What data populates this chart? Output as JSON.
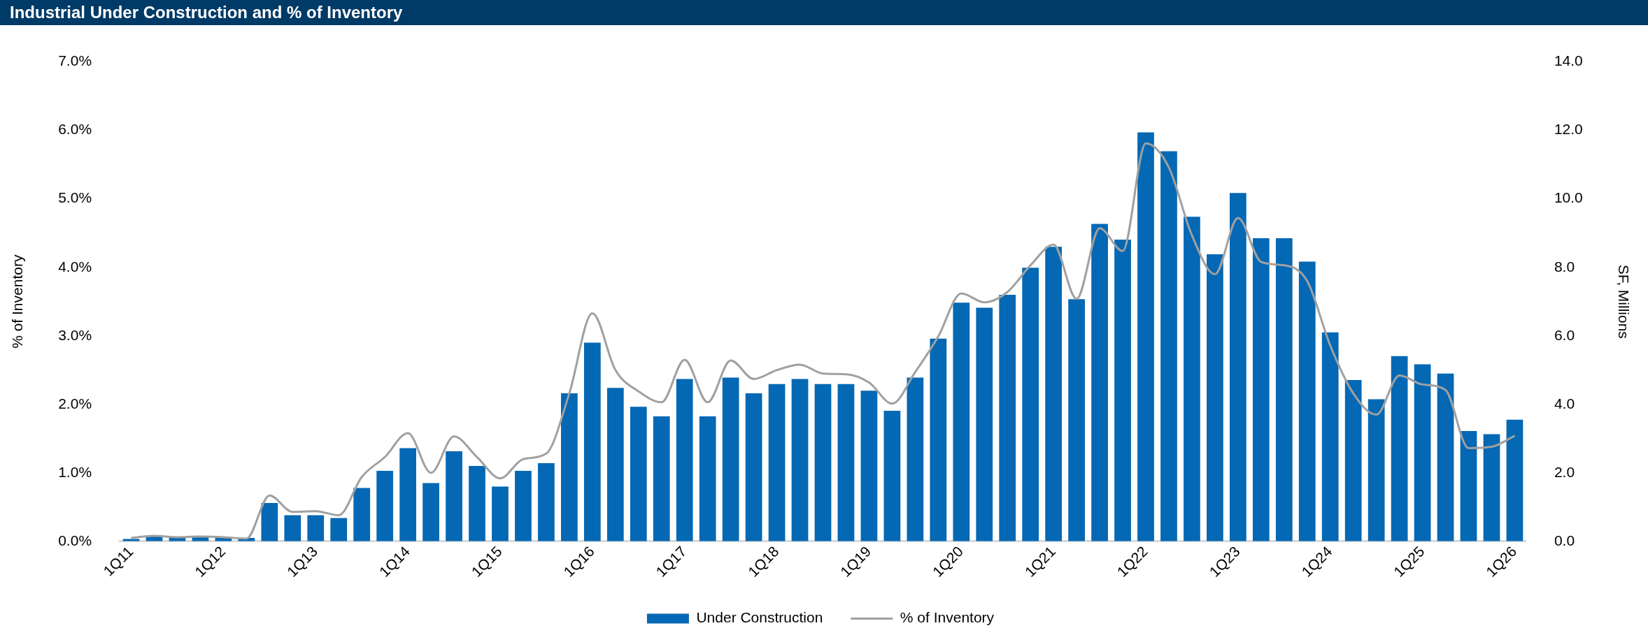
{
  "chart_data": {
    "type": "bar",
    "title": "Industrial Under Construction and % of Inventory",
    "ylabel": "% of Inventory",
    "y2label": "SF, Millions",
    "categories": [
      "1Q11",
      null,
      null,
      null,
      "1Q12",
      null,
      null,
      null,
      "1Q13",
      null,
      null,
      null,
      "1Q14",
      null,
      null,
      null,
      "1Q15",
      null,
      null,
      null,
      "1Q16",
      null,
      null,
      null,
      "1Q17",
      null,
      null,
      null,
      "1Q18",
      null,
      null,
      null,
      "1Q19",
      null,
      null,
      null,
      "1Q20",
      null,
      null,
      null,
      "1Q21",
      null,
      null,
      null,
      "1Q22",
      null,
      null,
      null,
      "1Q23",
      null,
      null,
      null,
      "1Q24",
      null,
      null,
      null,
      "1Q25",
      null,
      null,
      null,
      "1Q26"
    ],
    "series": [
      {
        "name": "Under Construction",
        "axis": "y2",
        "color": "#0468b4",
        "values": [
          0.07,
          0.15,
          0.12,
          0.12,
          0.12,
          0.1,
          1.12,
          0.76,
          0.76,
          0.68,
          1.56,
          2.06,
          2.72,
          1.7,
          2.63,
          2.2,
          1.6,
          2.06,
          2.28,
          4.32,
          5.8,
          4.48,
          3.93,
          3.65,
          4.74,
          3.65,
          4.78,
          4.32,
          4.59,
          4.74,
          4.59,
          4.59,
          4.4,
          3.81,
          4.78,
          5.92,
          6.97,
          6.82,
          7.2,
          7.99,
          8.6,
          7.07,
          9.27,
          8.81,
          11.94,
          11.39,
          9.48,
          8.38,
          10.17,
          8.85,
          8.85,
          8.17,
          6.1,
          4.71,
          4.15,
          5.41,
          5.17,
          4.9,
          3.22,
          3.13,
          3.55
        ]
      },
      {
        "name": "% of Inventory",
        "type": "line",
        "color": "#a0a0a0",
        "values": [
          0.05,
          0.08,
          0.06,
          0.07,
          0.06,
          0.04,
          0.67,
          0.43,
          0.44,
          0.38,
          0.94,
          1.23,
          1.58,
          1.0,
          1.53,
          1.23,
          0.92,
          1.2,
          1.28,
          2.16,
          3.33,
          2.5,
          2.19,
          2.03,
          2.65,
          2.03,
          2.64,
          2.37,
          2.5,
          2.58,
          2.45,
          2.44,
          2.32,
          2.01,
          2.47,
          2.99,
          3.62,
          3.49,
          3.64,
          4.03,
          4.33,
          3.54,
          4.57,
          4.24,
          5.81,
          5.46,
          4.47,
          3.9,
          4.72,
          4.08,
          4.03,
          3.8,
          2.86,
          2.16,
          1.85,
          2.42,
          2.29,
          2.21,
          1.36,
          1.38,
          1.54
        ]
      }
    ],
    "ylim": [
      0,
      7
    ],
    "yticks": [
      {
        "value": 0,
        "label": "0.0%"
      },
      {
        "value": 1,
        "label": "1.0%"
      },
      {
        "value": 2,
        "label": "2.0%"
      },
      {
        "value": 3,
        "label": "3.0%"
      },
      {
        "value": 4,
        "label": "4.0%"
      },
      {
        "value": 5,
        "label": "5.0%"
      },
      {
        "value": 6,
        "label": "6.0%"
      },
      {
        "value": 7,
        "label": "7.0%"
      }
    ],
    "y2lim": [
      0,
      14
    ],
    "y2ticks": [
      {
        "value": 0,
        "label": "0.0"
      },
      {
        "value": 2,
        "label": "2.0"
      },
      {
        "value": 4,
        "label": "4.0"
      },
      {
        "value": 6,
        "label": "6.0"
      },
      {
        "value": 8,
        "label": "8.0"
      },
      {
        "value": 10,
        "label": "10.0"
      },
      {
        "value": 12,
        "label": "12.0"
      },
      {
        "value": 14,
        "label": "14.0"
      }
    ],
    "legend": "bottom",
    "grid": false,
    "marker": "none",
    "line_style": "solid"
  }
}
